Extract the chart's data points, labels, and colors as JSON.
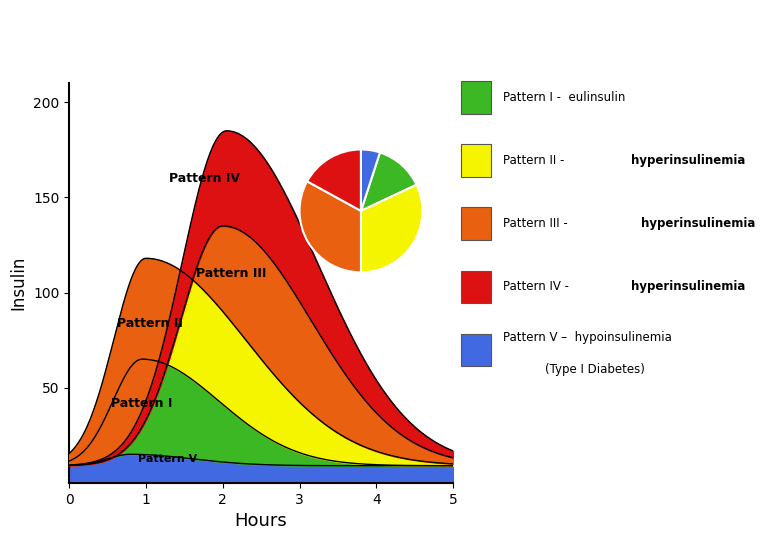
{
  "colors": {
    "pattern_I": "#3cb825",
    "pattern_II": "#f5f500",
    "pattern_III": "#e86010",
    "pattern_IV": "#dd1111",
    "pattern_V": "#4169e1"
  },
  "pie_slices": [
    0.13,
    0.3,
    0.22,
    0.1,
    0.05
  ],
  "pie_colors": [
    "#3cb825",
    "#f5f500",
    "#e86010",
    "#dd1111",
    "#4169e1"
  ],
  "pie_startangle": 72,
  "xlabel": "Hours",
  "ylabel": "Insulin",
  "xlim": [
    0,
    5
  ],
  "ylim": [
    0,
    210
  ],
  "yticks": [
    50,
    100,
    150,
    200
  ],
  "xticks": [
    0,
    1,
    2,
    3,
    4,
    5
  ],
  "background_color": "#ffffff"
}
